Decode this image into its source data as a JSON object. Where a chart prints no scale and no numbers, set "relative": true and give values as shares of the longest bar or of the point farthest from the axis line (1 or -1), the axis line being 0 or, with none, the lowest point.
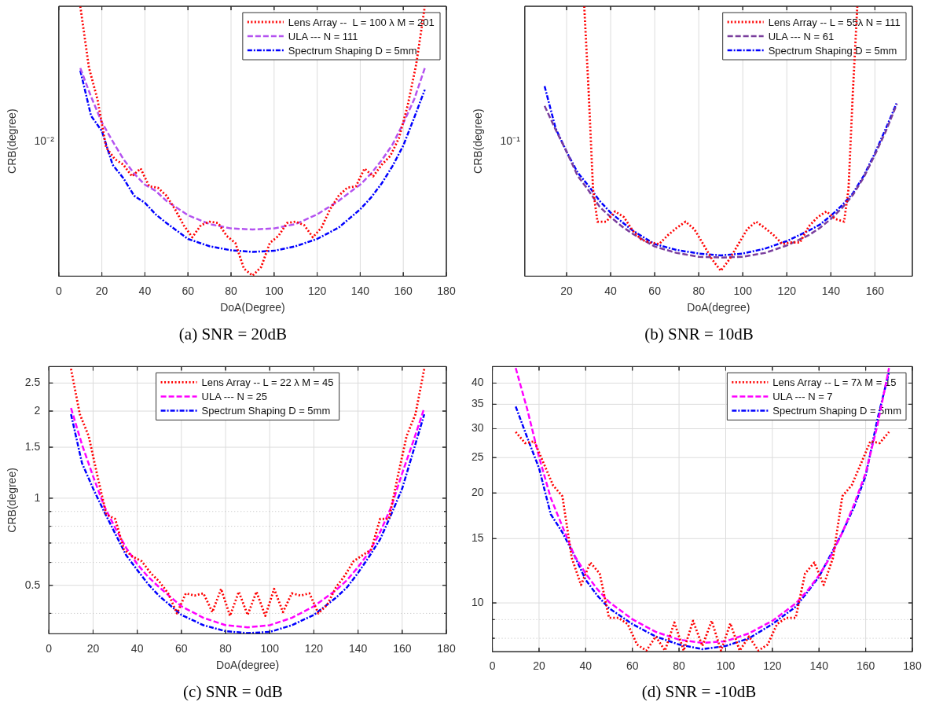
{
  "chart_data": [
    {
      "type": "line",
      "title": "(a) SNR = 20dB",
      "xlabel": "DoA(Degree)",
      "ylabel": "CRB(degree)",
      "grid": "x",
      "legend": "top right",
      "relative": true,
      "xlim": [
        0,
        180
      ],
      "xticks": [
        0,
        20,
        40,
        60,
        80,
        100,
        120,
        140,
        160,
        180
      ],
      "annotations": [
        "10⁻²"
      ],
      "series": [
        {
          "name": "Lens Array --  L = 100 λ M = 201",
          "color": "#ff0000",
          "line_style": "dotted",
          "marker": "none",
          "x": [
            10,
            14,
            18,
            22,
            26,
            30,
            34,
            38,
            42,
            46,
            50,
            54,
            58,
            62,
            66,
            70,
            74,
            78,
            82,
            86,
            90,
            94,
            98,
            102,
            106,
            110,
            114,
            118,
            122,
            126,
            130,
            134,
            138,
            142,
            146,
            150,
            154,
            158,
            162,
            166,
            170
          ],
          "values": [
            1,
            0.773,
            0.654,
            0.477,
            0.434,
            0.413,
            0.37,
            0.399,
            0.333,
            0.328,
            0.298,
            0.248,
            0.189,
            0.144,
            0.189,
            0.202,
            0.197,
            0.149,
            0.123,
            0.028,
            0.002,
            0.034,
            0.123,
            0.149,
            0.197,
            0.202,
            0.189,
            0.144,
            0.18,
            0.248,
            0.298,
            0.328,
            0.333,
            0.399,
            0.37,
            0.413,
            0.446,
            0.512,
            0.631,
            0.785,
            1
          ]
        },
        {
          "name": "ULA --- N = 111",
          "color": "#b452f0",
          "line_style": "dashed",
          "marker": "none",
          "x": [
            10,
            15,
            20,
            25,
            30,
            35,
            40,
            45,
            50,
            60,
            70,
            80,
            90,
            100,
            110,
            120,
            130,
            135,
            140,
            145,
            150,
            155,
            160,
            165,
            170
          ],
          "values": [
            0.771,
            0.665,
            0.57,
            0.5,
            0.434,
            0.38,
            0.339,
            0.316,
            0.279,
            0.226,
            0.193,
            0.177,
            0.173,
            0.177,
            0.193,
            0.229,
            0.279,
            0.31,
            0.339,
            0.38,
            0.43,
            0.488,
            0.567,
            0.654,
            0.771
          ]
        },
        {
          "name": "Spectrum Shaping D = 5mm",
          "color": "#0000ff",
          "line_style": "dashdot",
          "marker": "none",
          "x": [
            10,
            15,
            20,
            25,
            30,
            35,
            40,
            45,
            50,
            60,
            70,
            80,
            90,
            100,
            110,
            120,
            130,
            135,
            140,
            145,
            150,
            155,
            160,
            165,
            170
          ],
          "values": [
            0.762,
            0.594,
            0.538,
            0.413,
            0.363,
            0.298,
            0.272,
            0.229,
            0.197,
            0.138,
            0.111,
            0.096,
            0.09,
            0.094,
            0.111,
            0.138,
            0.18,
            0.214,
            0.248,
            0.291,
            0.344,
            0.408,
            0.484,
            0.586,
            0.691
          ]
        }
      ]
    },
    {
      "type": "line",
      "title": "(b) SNR = 10dB",
      "xlabel": "DoA(degree)",
      "ylabel": "CRB(degree)",
      "grid": "x",
      "legend": "top right",
      "relative": true,
      "xlim": [
        1,
        177
      ],
      "xticks": [
        20,
        40,
        60,
        80,
        100,
        120,
        140,
        160
      ],
      "annotations": [
        "10⁻¹"
      ],
      "series": [
        {
          "name": "Lens Array -- L = 55λ N = 111",
          "color": "#ff0000",
          "line_style": "dotted",
          "marker": "none",
          "x": [
            28,
            30,
            32,
            34,
            38,
            42,
            46,
            50,
            54,
            58,
            62,
            66,
            70,
            74,
            78,
            82,
            86,
            90,
            94,
            98,
            102,
            106,
            110,
            114,
            118,
            122,
            126,
            130,
            134,
            138,
            142,
            146,
            148,
            150,
            152
          ],
          "values": [
            1,
            0.685,
            0.322,
            0.202,
            0.202,
            0.24,
            0.219,
            0.169,
            0.135,
            0.125,
            0.119,
            0.152,
            0.179,
            0.202,
            0.174,
            0.119,
            0.063,
            0.02,
            0.063,
            0.119,
            0.174,
            0.202,
            0.179,
            0.152,
            0.119,
            0.125,
            0.125,
            0.185,
            0.219,
            0.24,
            0.212,
            0.202,
            0.322,
            0.685,
            1
          ]
        },
        {
          "name": "ULA --- N = 61",
          "color": "#7a3e9d",
          "line_style": "dashed",
          "marker": "none",
          "x": [
            10,
            15,
            20,
            25,
            30,
            35,
            40,
            45,
            50,
            60,
            70,
            80,
            90,
            100,
            110,
            120,
            130,
            135,
            140,
            145,
            150,
            155,
            160,
            165,
            170
          ],
          "values": [
            0.631,
            0.543,
            0.461,
            0.372,
            0.317,
            0.257,
            0.219,
            0.185,
            0.157,
            0.11,
            0.086,
            0.072,
            0.069,
            0.072,
            0.086,
            0.114,
            0.152,
            0.179,
            0.212,
            0.252,
            0.301,
            0.367,
            0.45,
            0.538,
            0.638
          ]
        },
        {
          "name": "Spectrum Shaping D = 5mm",
          "color": "#0000ff",
          "line_style": "dashdot",
          "marker": "none",
          "x": [
            10,
            15,
            20,
            25,
            30,
            35,
            40,
            45,
            50,
            60,
            70,
            80,
            90,
            100,
            110,
            120,
            130,
            135,
            140,
            145,
            150,
            155,
            160,
            165,
            170
          ],
          "values": [
            0.704,
            0.548,
            0.461,
            0.384,
            0.334,
            0.279,
            0.235,
            0.202,
            0.169,
            0.119,
            0.097,
            0.084,
            0.077,
            0.084,
            0.102,
            0.13,
            0.169,
            0.191,
            0.224,
            0.262,
            0.307,
            0.373,
            0.456,
            0.548,
            0.644
          ]
        }
      ]
    },
    {
      "type": "line",
      "title": "(c) SNR = 0dB",
      "xlabel": "DoA(degree)",
      "ylabel": "CRB(degree)",
      "log": "y",
      "grid": true,
      "legend": "top",
      "xlim": [
        0,
        180
      ],
      "xticks": [
        0,
        20,
        40,
        60,
        80,
        100,
        120,
        140,
        160,
        180
      ],
      "ylim": [
        0.34,
        2.85
      ],
      "yticks": [
        {
          "value": 0.4,
          "label": null
        },
        0.5,
        {
          "value": 0.6,
          "label": null
        },
        {
          "value": 0.7,
          "label": null
        },
        {
          "value": 0.8,
          "label": null
        },
        {
          "value": 0.9,
          "label": null
        },
        1,
        1.5,
        2,
        2.5
      ],
      "series": [
        {
          "name": "Lens Array -- L = 22 λ M = 45",
          "color": "#ff0000",
          "line_style": "dotted",
          "marker": "none",
          "x": [
            10,
            14,
            18,
            22,
            26,
            30,
            34,
            38,
            42,
            46,
            50,
            54,
            58,
            62,
            66,
            70,
            74,
            78,
            82,
            86,
            90,
            94,
            98,
            102,
            106,
            110,
            114,
            118,
            122,
            126,
            130,
            134,
            138,
            142,
            146,
            150,
            154,
            158,
            162,
            166,
            170
          ],
          "values": [
            2.8,
            1.95,
            1.64,
            1.19,
            0.878,
            0.848,
            0.665,
            0.628,
            0.606,
            0.552,
            0.515,
            0.469,
            0.4,
            0.469,
            0.461,
            0.469,
            0.404,
            0.486,
            0.392,
            0.475,
            0.395,
            0.475,
            0.392,
            0.486,
            0.404,
            0.469,
            0.461,
            0.469,
            0.4,
            0.428,
            0.492,
            0.54,
            0.606,
            0.635,
            0.665,
            0.848,
            0.848,
            1.19,
            1.64,
            1.95,
            2.8
          ]
        },
        {
          "name": "ULA --- N = 25",
          "color": "#ff00ff",
          "line_style": "dashed",
          "marker": "none",
          "x": [
            10,
            15,
            20,
            25,
            30,
            35,
            40,
            45,
            50,
            60,
            70,
            80,
            90,
            100,
            110,
            120,
            130,
            135,
            140,
            145,
            150,
            155,
            160,
            165,
            170
          ],
          "values": [
            2.05,
            1.53,
            1.19,
            0.94,
            0.79,
            0.673,
            0.592,
            0.534,
            0.492,
            0.423,
            0.386,
            0.364,
            0.358,
            0.364,
            0.386,
            0.423,
            0.481,
            0.521,
            0.578,
            0.65,
            0.764,
            0.931,
            1.22,
            1.57,
            2.05
          ]
        },
        {
          "name": "Spectrum Shaping D = 5mm",
          "color": "#0000ff",
          "line_style": "dashdot",
          "marker": "none",
          "x": [
            10,
            15,
            20,
            25,
            30,
            35,
            40,
            45,
            50,
            60,
            70,
            80,
            90,
            100,
            110,
            120,
            130,
            135,
            140,
            145,
            150,
            155,
            160,
            165,
            170
          ],
          "values": [
            1.95,
            1.32,
            1.08,
            0.899,
            0.755,
            0.635,
            0.565,
            0.504,
            0.459,
            0.395,
            0.364,
            0.347,
            0.342,
            0.345,
            0.364,
            0.395,
            0.453,
            0.492,
            0.552,
            0.628,
            0.721,
            0.878,
            1.08,
            1.45,
            1.95
          ]
        }
      ]
    },
    {
      "type": "line",
      "title": "(d) SNR = -10dB",
      "log": "y",
      "grid": true,
      "legend": "top right",
      "xlim": [
        0,
        180
      ],
      "xticks": [
        0,
        20,
        40,
        60,
        80,
        100,
        120,
        140,
        160,
        180
      ],
      "ylim": [
        7.35,
        44.4
      ],
      "yticks": [
        {
          "value": 8,
          "label": null
        },
        {
          "value": 9,
          "label": null
        },
        10,
        15,
        20,
        25,
        30,
        35,
        40
      ],
      "series": [
        {
          "name": "Lens Array -- L = 7λ M = 15",
          "color": "#ff0000",
          "line_style": "dotted",
          "marker": "none",
          "x": [
            10,
            14,
            18,
            22,
            26,
            30,
            34,
            38,
            42,
            46,
            50,
            54,
            58,
            62,
            66,
            70,
            74,
            78,
            82,
            86,
            90,
            94,
            98,
            102,
            106,
            110,
            114,
            118,
            122,
            126,
            130,
            134,
            138,
            142,
            146,
            150,
            154,
            158,
            162,
            166,
            170
          ],
          "values": [
            29.4,
            27.4,
            27.7,
            24.1,
            21,
            19.6,
            13.3,
            11.2,
            12.9,
            12.03,
            9.1,
            9.1,
            8.75,
            7.69,
            7.4,
            8.09,
            7.4,
            8.84,
            7.4,
            8.93,
            7.62,
            8.93,
            7.4,
            8.79,
            7.4,
            8.09,
            7.4,
            7.69,
            8.75,
            9.1,
            9.1,
            12.03,
            12.9,
            11.2,
            13.3,
            19.6,
            21,
            24.1,
            27.7,
            27.4,
            29.4
          ]
        },
        {
          "name": "ULA --- N = 7",
          "color": "#ff00ff",
          "line_style": "dashed",
          "marker": "none",
          "x": [
            10,
            15,
            20,
            25,
            30,
            35,
            40,
            45,
            50,
            60,
            70,
            80,
            90,
            100,
            110,
            120,
            130,
            135,
            140,
            145,
            150,
            155,
            160,
            165,
            170
          ],
          "values": [
            44,
            33.8,
            25.1,
            19.4,
            16.2,
            13.55,
            12.03,
            10.9,
            10.06,
            9.02,
            8.33,
            7.93,
            7.77,
            7.85,
            8.25,
            8.93,
            9.96,
            10.8,
            11.9,
            13.4,
            15.6,
            18.6,
            22.7,
            30.6,
            44
          ]
        },
        {
          "name": "Spectrum Shaping D = 5mm",
          "color": "#0000ff",
          "line_style": "dashdot",
          "marker": "none",
          "x": [
            10,
            15,
            20,
            25,
            30,
            35,
            40,
            45,
            50,
            60,
            70,
            80,
            90,
            100,
            110,
            120,
            130,
            135,
            140,
            145,
            150,
            155,
            160,
            165,
            170
          ],
          "values": [
            34.5,
            28.3,
            23.4,
            17.5,
            15.6,
            13.55,
            11.56,
            10.47,
            9.67,
            8.75,
            8.09,
            7.69,
            7.47,
            7.62,
            8.0,
            8.75,
            9.76,
            10.7,
            11.8,
            13.55,
            15.6,
            18.3,
            22.3,
            31.8,
            42.9
          ]
        }
      ]
    }
  ]
}
